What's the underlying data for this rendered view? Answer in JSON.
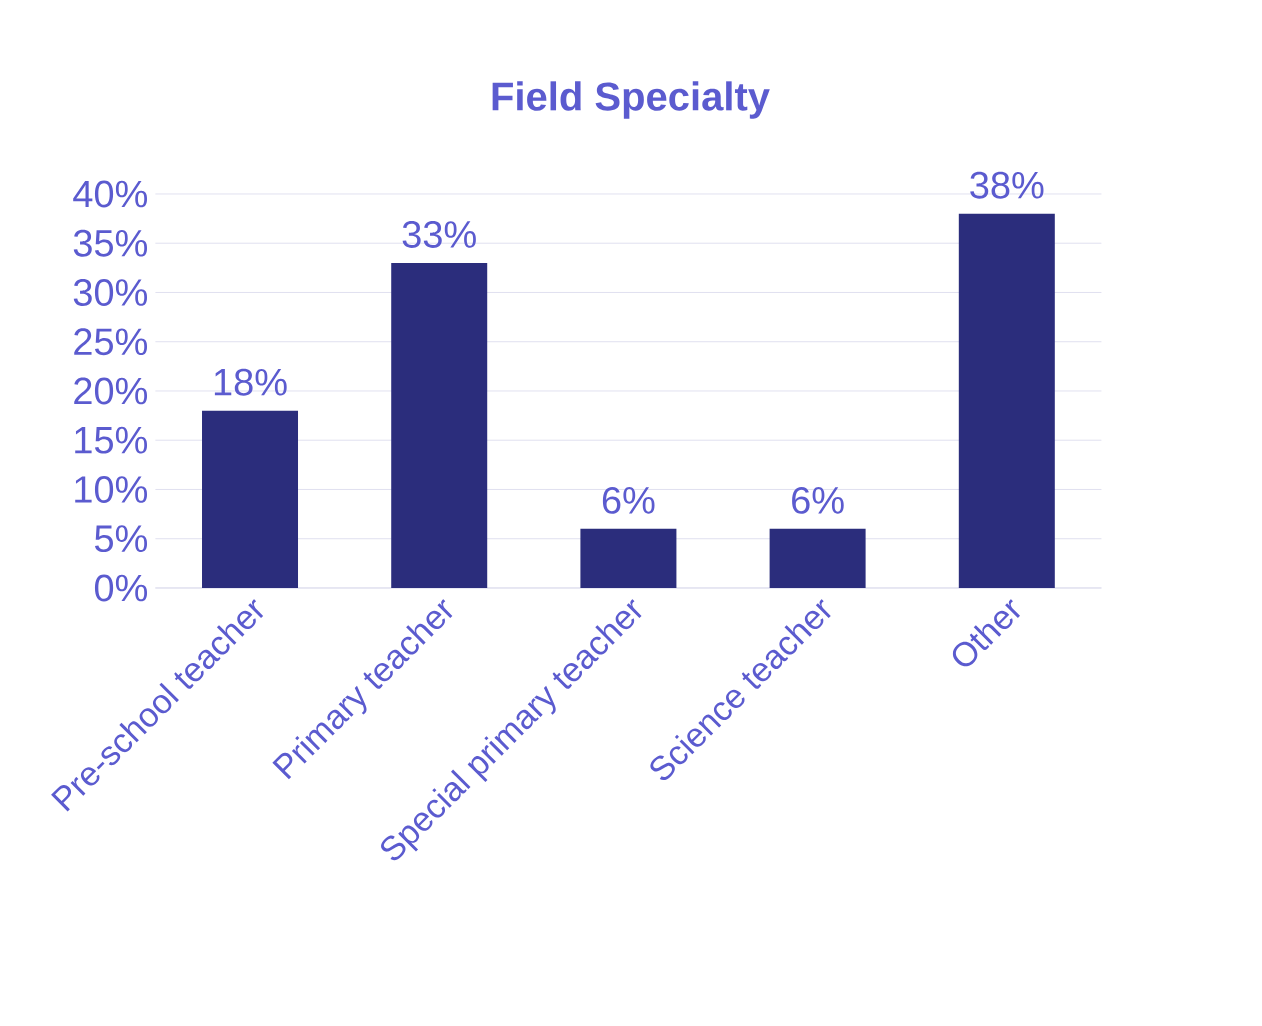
{
  "chart_data": {
    "type": "bar",
    "title": "Field Specialty",
    "categories": [
      "Pre-school teacher",
      "Primary teacher",
      "Special primary teacher",
      "Science teacher",
      "Other"
    ],
    "values": [
      18,
      33,
      6,
      6,
      38
    ],
    "value_labels": [
      "18%",
      "33%",
      "6%",
      "6%",
      "38%"
    ],
    "color": "#2b2d7c",
    "ylim": [
      0,
      40
    ],
    "yticks": [
      {
        "value": 0,
        "label": "0%"
      },
      {
        "value": 5,
        "label": "5%"
      },
      {
        "value": 10,
        "label": "10%"
      },
      {
        "value": 15,
        "label": "15%"
      },
      {
        "value": 20,
        "label": "20%"
      },
      {
        "value": 25,
        "label": "25%"
      },
      {
        "value": 30,
        "label": "30%"
      },
      {
        "value": 35,
        "label": "35%"
      },
      {
        "value": 40,
        "label": "40%"
      }
    ],
    "grid": "y"
  }
}
